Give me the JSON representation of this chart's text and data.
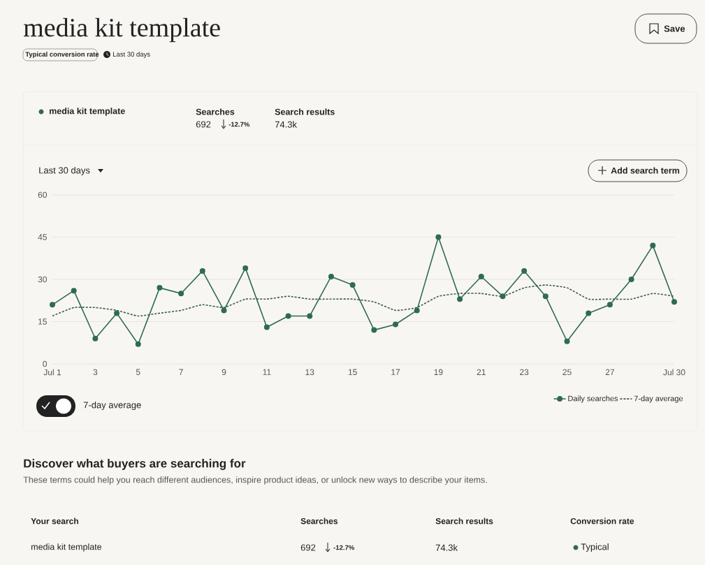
{
  "chart_data": {
    "type": "line",
    "title": "media kit template",
    "x": [
      1,
      2,
      3,
      4,
      5,
      6,
      7,
      8,
      9,
      10,
      11,
      12,
      13,
      14,
      15,
      16,
      17,
      18,
      19,
      20,
      21,
      22,
      23,
      24,
      25,
      26,
      27,
      28,
      29,
      30
    ],
    "series": [
      {
        "name": "Daily searches",
        "color": "#2e6b55",
        "marker": "circle",
        "line_style": "solid",
        "values": [
          21,
          26,
          9,
          18,
          7,
          27,
          25,
          33,
          19,
          34,
          13,
          17,
          17,
          31,
          28,
          12,
          14,
          19,
          45,
          23,
          31,
          24,
          33,
          24,
          8,
          18,
          21,
          30,
          42,
          22
        ]
      },
      {
        "name": "7-day average",
        "color": "#3b5a50",
        "marker": "none",
        "line_style": "dashed",
        "values": [
          17,
          20,
          20,
          19,
          17,
          18,
          19,
          21,
          20,
          23,
          23,
          24,
          23,
          23,
          23,
          22,
          19,
          20,
          24,
          25,
          25,
          24,
          27,
          28,
          27,
          23,
          23,
          23,
          25,
          24
        ]
      }
    ],
    "xlim": [
      1,
      30
    ],
    "xticks": [
      {
        "value": 1,
        "label": "Jul 1"
      },
      3,
      5,
      7,
      9,
      11,
      13,
      15,
      17,
      19,
      21,
      23,
      25,
      27,
      {
        "value": 30,
        "label": "Jul 30"
      }
    ],
    "ylim": [
      0,
      60
    ],
    "yticks": [
      0,
      15,
      30,
      45,
      60
    ],
    "grid": "y",
    "legend": "bottom right",
    "annotations": [
      "Typical conversion rate",
      "Last 30 days",
      "Save",
      "media kit template",
      "Searches",
      "692",
      "-12.7%",
      "Search results",
      "74.3k",
      "Last 30 days",
      "Add search term",
      "7-day average",
      "Discover what buyers are searching for",
      "These terms could help you reach different audiences, inspire product ideas, or unlock new ways to describe your items.",
      "Your search",
      "Searches",
      "Search results",
      "Conversion rate",
      "media kit template",
      "692",
      "-12.7%",
      "74.3k",
      "Typical"
    ]
  }
}
